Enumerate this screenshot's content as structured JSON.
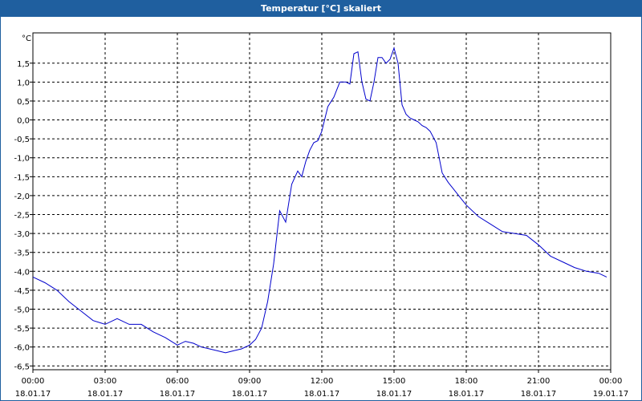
{
  "window": {
    "title": "Temperatur [°C] skaliert"
  },
  "colors": {
    "titlebar": "#1f5f9f",
    "line": "#0000cc",
    "grid": "#000000",
    "axis": "#000000"
  },
  "chart_data": {
    "type": "line",
    "title": "Temperatur [°C] skaliert",
    "unit_label": "°C",
    "xlabel": "",
    "ylabel": "",
    "grid": true,
    "ylim": [
      -6.6,
      2.3
    ],
    "xlim": [
      "18.01.17 00:00",
      "19.01.17 00:00"
    ],
    "y_ticks": [
      1.5,
      1.0,
      0.5,
      0.0,
      -0.5,
      -1.0,
      -1.5,
      -2.0,
      -2.5,
      -3.0,
      -3.5,
      -4.0,
      -4.5,
      -5.0,
      -5.5,
      -6.0,
      -6.5
    ],
    "y_tick_labels": [
      "1,5",
      "1,0",
      "0,5",
      "0,0",
      "-0,5",
      "-1,0",
      "-1,5",
      "-2,0",
      "-2,5",
      "-3,0",
      "-3,5",
      "-4,0",
      "-4,5",
      "-5,0",
      "-5,5",
      "-6,0",
      "-6,5"
    ],
    "x_ticks": [
      {
        "time": "00:00",
        "date": "18.01.17"
      },
      {
        "time": "03:00",
        "date": "18.01.17"
      },
      {
        "time": "06:00",
        "date": "18.01.17"
      },
      {
        "time": "09:00",
        "date": "18.01.17"
      },
      {
        "time": "12:00",
        "date": "18.01.17"
      },
      {
        "time": "15:00",
        "date": "18.01.17"
      },
      {
        "time": "18:00",
        "date": "18.01.17"
      },
      {
        "time": "21:00",
        "date": "18.01.17"
      },
      {
        "time": "00:00",
        "date": "19.01.17"
      }
    ],
    "series": [
      {
        "x": [
          "00:00",
          "00:30",
          "01:00",
          "01:30",
          "02:00",
          "02:30",
          "03:00",
          "03:30",
          "04:00",
          "04:30",
          "05:00",
          "05:30",
          "06:00",
          "06:20",
          "06:40",
          "07:00",
          "07:20",
          "07:40",
          "08:00",
          "08:20",
          "08:40",
          "09:00",
          "09:15",
          "09:30",
          "09:45",
          "10:00",
          "10:15",
          "10:30",
          "10:45",
          "11:00",
          "11:10",
          "11:20",
          "11:30",
          "11:40",
          "11:50",
          "12:00",
          "12:15",
          "12:30",
          "12:45",
          "13:00",
          "13:10",
          "13:20",
          "13:30",
          "13:40",
          "13:50",
          "14:00",
          "14:10",
          "14:20",
          "14:30",
          "14:40",
          "14:50",
          "15:00",
          "15:10",
          "15:20",
          "15:30",
          "15:40",
          "15:50",
          "16:00",
          "16:10",
          "16:20",
          "16:30",
          "16:45",
          "17:00",
          "17:15",
          "17:30",
          "17:45",
          "18:00",
          "18:30",
          "19:00",
          "19:30",
          "20:00",
          "20:30",
          "21:00",
          "21:30",
          "22:00",
          "22:30",
          "23:00",
          "23:30",
          "23:50"
        ],
        "y": [
          -4.15,
          -4.3,
          -4.5,
          -4.8,
          -5.05,
          -5.3,
          -5.4,
          -5.25,
          -5.4,
          -5.4,
          -5.6,
          -5.75,
          -5.95,
          -5.85,
          -5.9,
          -6.0,
          -6.05,
          -6.1,
          -6.15,
          -6.1,
          -6.05,
          -5.95,
          -5.8,
          -5.5,
          -4.8,
          -3.8,
          -2.4,
          -2.7,
          -1.7,
          -1.35,
          -1.5,
          -1.1,
          -0.8,
          -0.6,
          -0.55,
          -0.3,
          0.35,
          0.6,
          1.0,
          1.0,
          0.95,
          1.75,
          1.8,
          1.0,
          0.55,
          0.5,
          1.0,
          1.65,
          1.65,
          1.5,
          1.6,
          1.9,
          1.5,
          0.4,
          0.15,
          0.05,
          0.0,
          -0.05,
          -0.15,
          -0.2,
          -0.3,
          -0.6,
          -1.4,
          -1.65,
          -1.85,
          -2.05,
          -2.25,
          -2.55,
          -2.75,
          -2.95,
          -3.0,
          -3.05,
          -3.3,
          -3.6,
          -3.75,
          -3.9,
          -4.0,
          -4.05,
          -4.15
        ]
      }
    ]
  }
}
